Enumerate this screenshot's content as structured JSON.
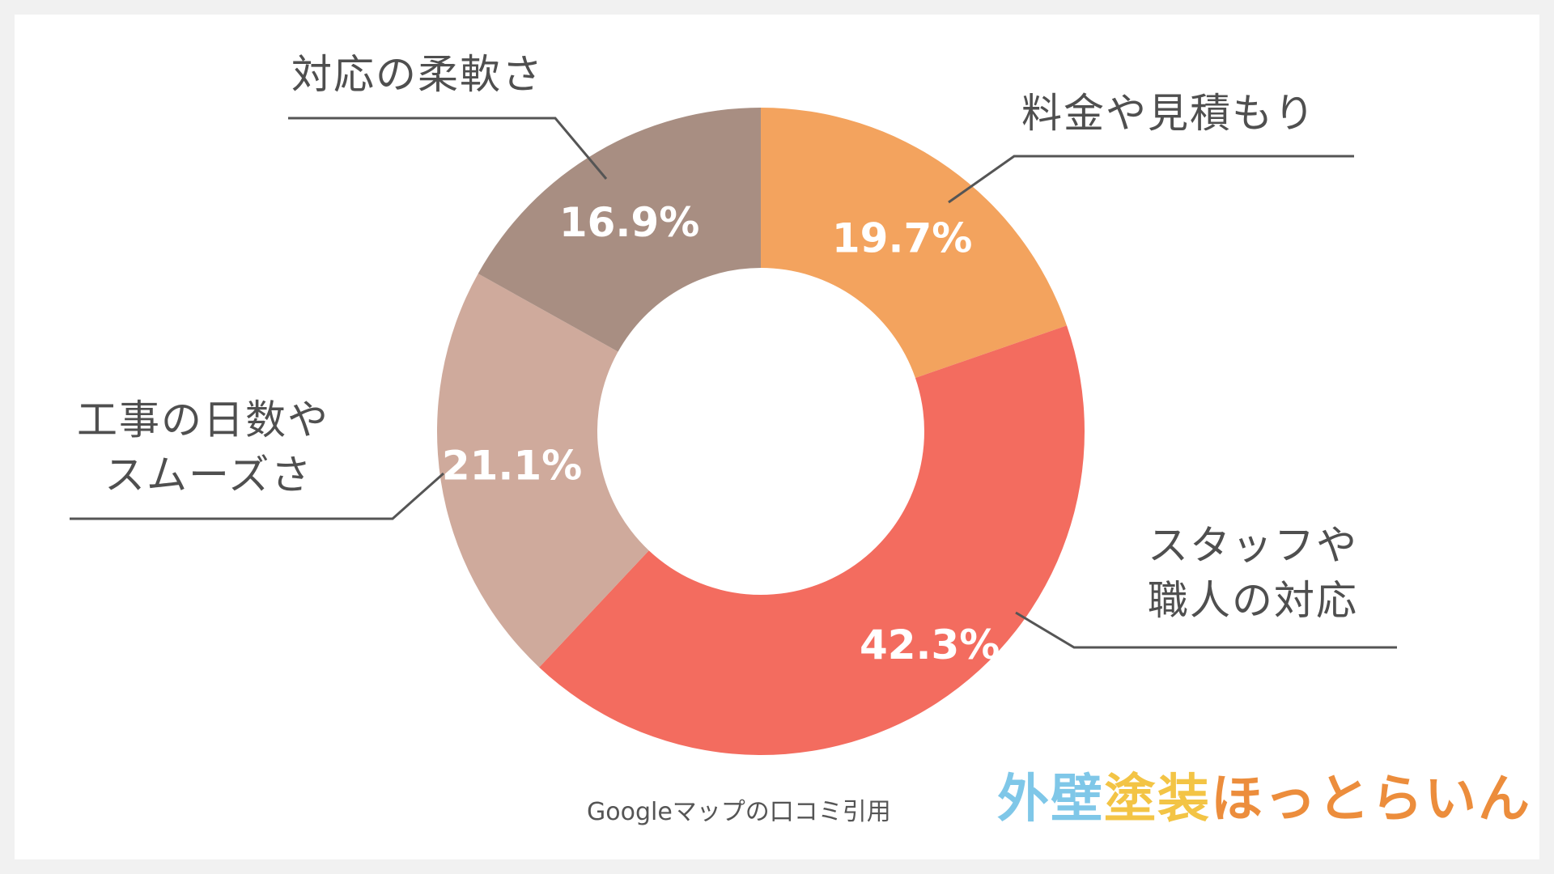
{
  "chart_data": {
    "type": "donut",
    "slices": [
      {
        "label": "料金や見積もり",
        "value": 19.7,
        "pct_label": "19.7%",
        "color": "#f3a35e"
      },
      {
        "label": "スタッフや職人の対応",
        "value": 42.3,
        "pct_label": "42.3%",
        "color": "#f36c5f"
      },
      {
        "label": "工事の日数やスムーズさ",
        "value": 21.1,
        "pct_label": "21.1%",
        "color": "#cfaa9c"
      },
      {
        "label": "対応の柔軟さ",
        "value": 16.9,
        "pct_label": "16.9%",
        "color": "#a88e82"
      }
    ]
  },
  "labels": {
    "ryokin": "料金や見積もり",
    "staff_line1": "スタッフや",
    "staff_line2": "職人の対応",
    "koji_line1": "工事の日数や",
    "koji_line2": "スムーズさ",
    "taio": "対応の柔軟さ"
  },
  "source": "Googleマップの口コミ引用",
  "logo": {
    "part1": "外壁",
    "part2": "塗装",
    "part3": "ほっとらいん"
  }
}
